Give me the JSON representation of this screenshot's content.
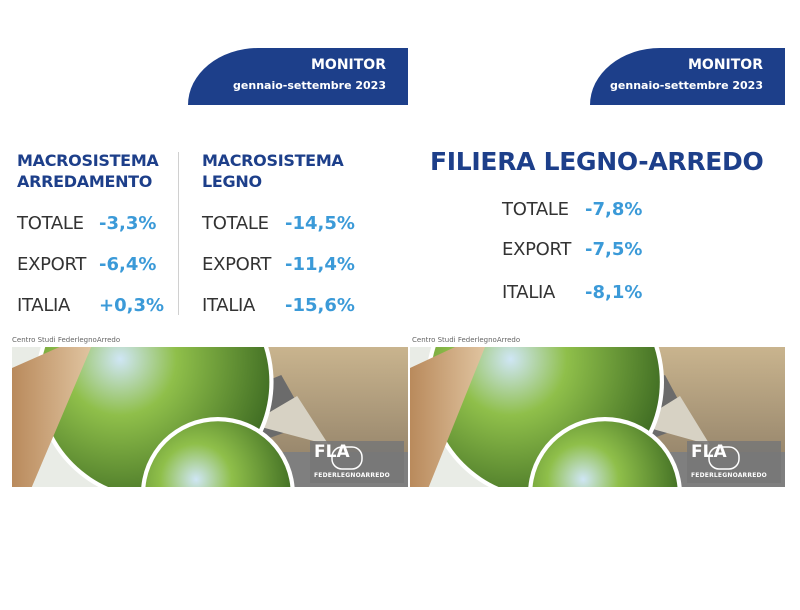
{
  "panels": [
    {
      "banner": {
        "title": "MONITOR",
        "subtitle": "gennaio-settembre 2023"
      },
      "sections": [
        {
          "heading": [
            "MACROSISTEMA",
            "ARREDAMENTO"
          ],
          "rows": [
            {
              "label": "TOTALE",
              "value": "-3,3%"
            },
            {
              "label": "EXPORT",
              "value": "-6,4%"
            },
            {
              "label": "ITALIA",
              "value": "+0,3%"
            }
          ]
        },
        {
          "heading": [
            "MACROSISTEMA",
            "LEGNO"
          ],
          "rows": [
            {
              "label": "TOTALE",
              "value": "-14,5%"
            },
            {
              "label": "EXPORT",
              "value": "-11,4%"
            },
            {
              "label": "ITALIA",
              "value": "-15,6%"
            }
          ]
        }
      ],
      "credit": "Centro Studi FederlegnoArredo",
      "logo": {
        "mark": "FLA",
        "name": "FEDERLEGNOARREDO"
      }
    },
    {
      "banner": {
        "title": "MONITOR",
        "subtitle": "gennaio-settembre 2023"
      },
      "sections": [
        {
          "heading": [
            "FILIERA LEGNO-ARREDO"
          ],
          "rows": [
            {
              "label": "TOTALE",
              "value": "-7,8%"
            },
            {
              "label": "EXPORT",
              "value": "-7,5%"
            },
            {
              "label": "ITALIA",
              "value": "-8,1%"
            }
          ]
        }
      ],
      "credit": "Centro Studi FederlegnoArredo",
      "logo": {
        "mark": "FLA",
        "name": "FEDERLEGNOARREDO"
      }
    }
  ]
}
